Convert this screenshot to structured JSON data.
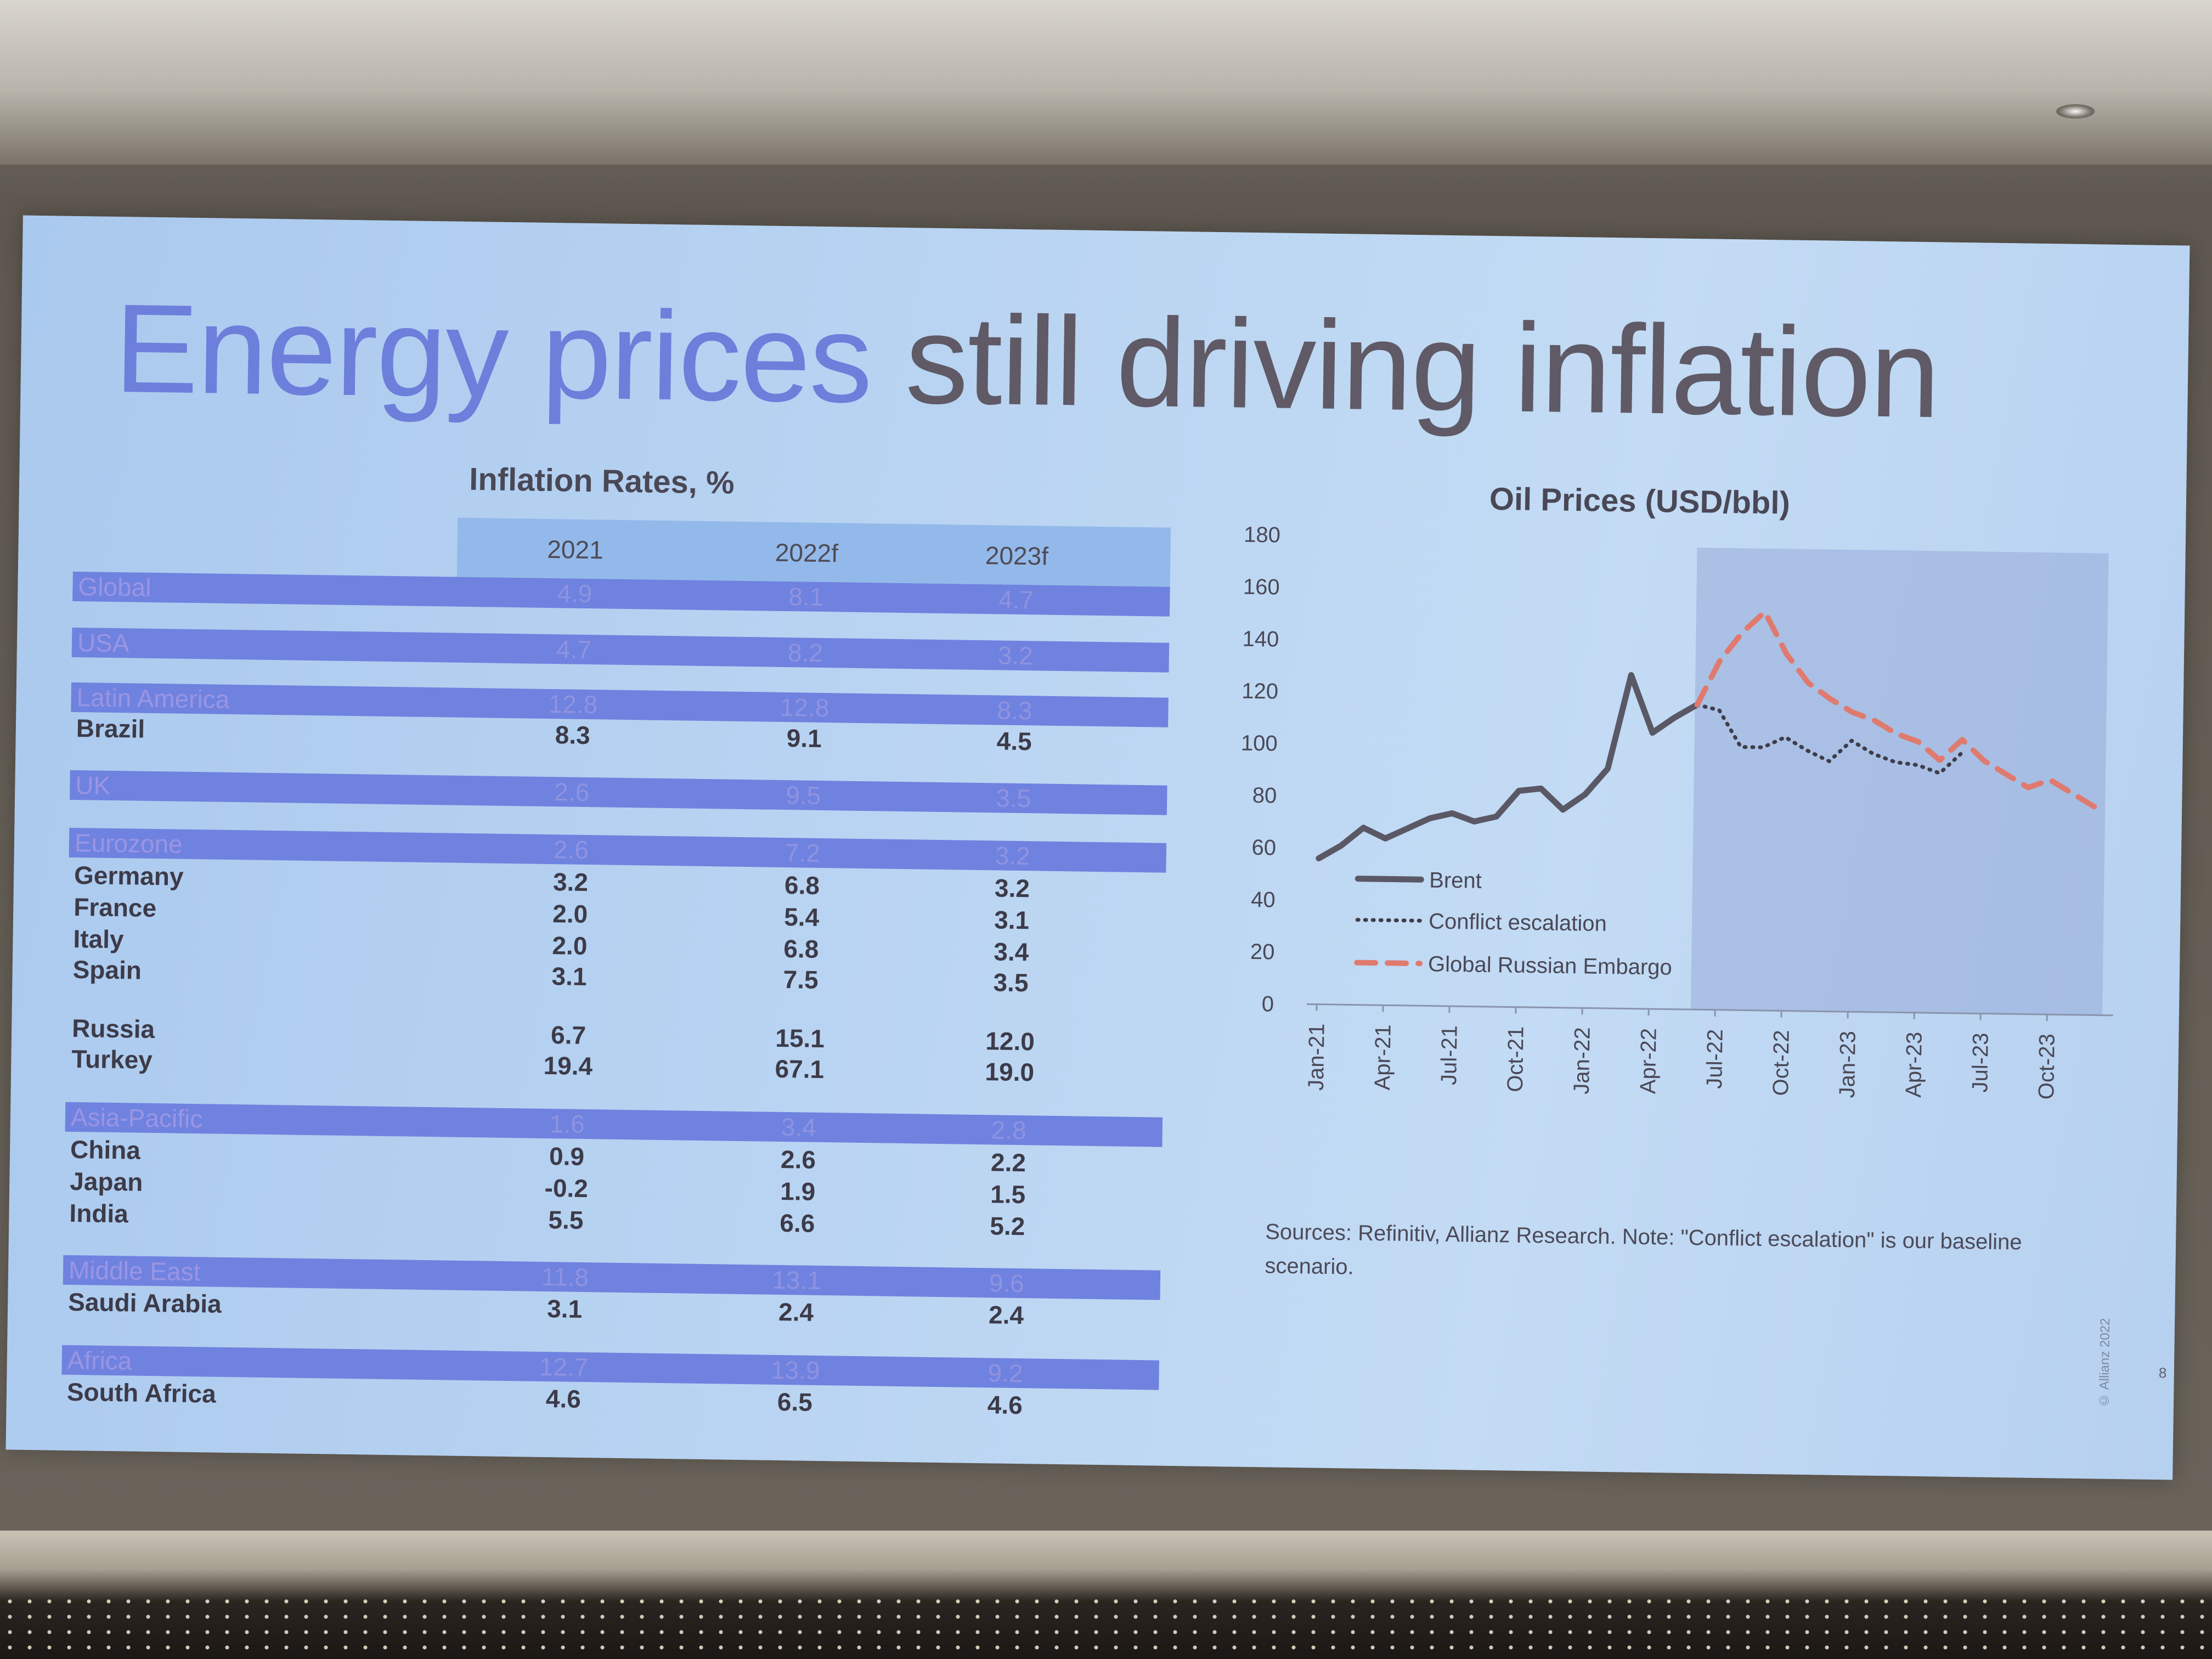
{
  "slide": {
    "title_part_a": "Energy prices",
    "title_part_b": "still driving inflation",
    "copyright": "© Allianz 2022",
    "page_number": "8"
  },
  "table": {
    "title": "Inflation Rates, %",
    "columns": [
      "2021",
      "2022f",
      "2023f"
    ],
    "rows": [
      {
        "name": "Global",
        "kind": "region",
        "values": [
          "4.9",
          "8.1",
          "4.7"
        ]
      },
      {
        "name": "USA",
        "kind": "region",
        "values": [
          "4.7",
          "8.2",
          "3.2"
        ]
      },
      {
        "name": "Latin America",
        "kind": "region",
        "values": [
          "12.8",
          "12.8",
          "8.3"
        ]
      },
      {
        "name": "Brazil",
        "kind": "country",
        "values": [
          "8.3",
          "9.1",
          "4.5"
        ]
      },
      {
        "name": "UK",
        "kind": "region",
        "values": [
          "2.6",
          "9.5",
          "3.5"
        ]
      },
      {
        "name": "Eurozone",
        "kind": "region",
        "values": [
          "2.6",
          "7.2",
          "3.2"
        ]
      },
      {
        "name": "Germany",
        "kind": "country",
        "values": [
          "3.2",
          "6.8",
          "3.2"
        ]
      },
      {
        "name": "France",
        "kind": "country",
        "values": [
          "2.0",
          "5.4",
          "3.1"
        ]
      },
      {
        "name": "Italy",
        "kind": "country",
        "values": [
          "2.0",
          "6.8",
          "3.4"
        ]
      },
      {
        "name": "Spain",
        "kind": "country",
        "values": [
          "3.1",
          "7.5",
          "3.5"
        ]
      },
      {
        "name": "Russia",
        "kind": "country",
        "values": [
          "6.7",
          "15.1",
          "12.0"
        ]
      },
      {
        "name": "Turkey",
        "kind": "country",
        "values": [
          "19.4",
          "67.1",
          "19.0"
        ]
      },
      {
        "name": "Asia-Pacific",
        "kind": "region",
        "values": [
          "1.6",
          "3.4",
          "2.8"
        ]
      },
      {
        "name": "China",
        "kind": "country",
        "values": [
          "0.9",
          "2.6",
          "2.2"
        ]
      },
      {
        "name": "Japan",
        "kind": "country",
        "values": [
          "-0.2",
          "1.9",
          "1.5"
        ]
      },
      {
        "name": "India",
        "kind": "country",
        "values": [
          "5.5",
          "6.6",
          "5.2"
        ]
      },
      {
        "name": "Middle East",
        "kind": "region",
        "values": [
          "11.8",
          "13.1",
          "9.6"
        ]
      },
      {
        "name": "Saudi Arabia",
        "kind": "country",
        "values": [
          "3.1",
          "2.4",
          "2.4"
        ]
      },
      {
        "name": "Africa",
        "kind": "region",
        "values": [
          "12.7",
          "13.9",
          "9.2"
        ]
      },
      {
        "name": "South Africa",
        "kind": "country",
        "values": [
          "4.6",
          "6.5",
          "4.6"
        ]
      }
    ]
  },
  "chart_data": {
    "type": "line",
    "title": "Oil Prices (USD/bbl)",
    "x": [
      "2021-01",
      "2021-02",
      "2021-03",
      "2021-04",
      "2021-05",
      "2021-06",
      "2021-07",
      "2021-08",
      "2021-09",
      "2021-10",
      "2021-11",
      "2021-12",
      "2022-01",
      "2022-02",
      "2022-03",
      "2022-04",
      "2022-05",
      "2022-06",
      "2022-07",
      "2022-08",
      "2022-09",
      "2022-10",
      "2022-11",
      "2022-12",
      "2023-01",
      "2023-02",
      "2023-03",
      "2023-04",
      "2023-05",
      "2023-06",
      "2023-07",
      "2023-08",
      "2023-09",
      "2023-10",
      "2023-11",
      "2023-12"
    ],
    "x_tick_labels": [
      "Jan-21",
      "Apr-21",
      "Jul-21",
      "Oct-21",
      "Jan-22",
      "Apr-22",
      "Jul-22",
      "Oct-22",
      "Jan-23",
      "Apr-23",
      "Jul-23",
      "Oct-23"
    ],
    "series": [
      {
        "name": "Brent",
        "style": "solid",
        "color": "#5b5866",
        "values": [
          56,
          61,
          68,
          64,
          68,
          72,
          74,
          71,
          73,
          83,
          84,
          76,
          82,
          92,
          128,
          106,
          112,
          117,
          null,
          null,
          null,
          null,
          null,
          null,
          null,
          null,
          null,
          null,
          null,
          null,
          null,
          null,
          null,
          null,
          null,
          null
        ]
      },
      {
        "name": "Conflict escalation",
        "style": "dotted",
        "color": "#3f3d4a",
        "values": [
          null,
          null,
          null,
          null,
          null,
          null,
          null,
          null,
          null,
          null,
          null,
          null,
          null,
          null,
          null,
          null,
          null,
          117,
          115,
          101,
          101,
          105,
          100,
          96,
          104,
          99,
          96,
          95,
          92,
          100,
          null,
          null,
          null,
          null,
          null,
          null
        ]
      },
      {
        "name": "Global Russian Embargo",
        "style": "dashed",
        "color": "#e07a6e",
        "values": [
          null,
          null,
          null,
          null,
          null,
          null,
          null,
          null,
          null,
          null,
          null,
          null,
          null,
          null,
          null,
          null,
          null,
          117,
          134,
          145,
          153,
          137,
          126,
          120,
          115,
          112,
          107,
          104,
          97,
          105,
          97,
          92,
          87,
          90,
          85,
          80
        ]
      }
    ],
    "ylim": [
      0,
      180
    ],
    "y_ticks": [
      0,
      20,
      40,
      60,
      80,
      100,
      120,
      140,
      160,
      180
    ],
    "forecast_shading_start": "2022-06",
    "legend_position": "bottom-left",
    "grid": false
  },
  "sources_note": "Sources: Refinitiv, Allianz Research. Note: \"Conflict escalation\" is our baseline scenario.",
  "colors": {
    "region_band": "#6f82df",
    "header_band": "#93b9ea",
    "title_accent": "#6c7fdb",
    "title_main": "#5f5a66",
    "forecast_shade": "#97abd8"
  }
}
